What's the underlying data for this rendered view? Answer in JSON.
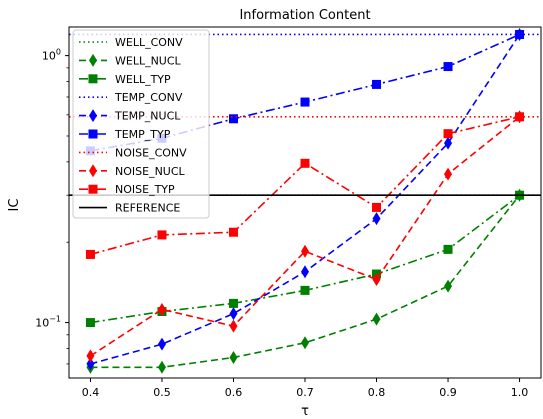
{
  "chart_data": {
    "type": "line",
    "title": "Information Content",
    "xlabel": "τ",
    "ylabel": "IC",
    "xlim": [
      0.37,
      1.03
    ],
    "ylim": [
      0.062,
      1.28
    ],
    "yscale": "log",
    "grid": false,
    "legend_position": "upper-left",
    "x_ticks": [
      "0.4",
      "0.5",
      "0.6",
      "0.7",
      "0.8",
      "0.9",
      "1.0"
    ],
    "y_ticks": [
      {
        "value": 0.1,
        "base": "10",
        "exp": "−1"
      },
      {
        "value": 1.0,
        "base": "10",
        "exp": "0"
      }
    ],
    "x": [
      0.4,
      0.5,
      0.6,
      0.7,
      0.8,
      0.9,
      1.0
    ],
    "series": [
      {
        "name": "WELL_CONV",
        "color": "#008000",
        "linestyle": "dotted",
        "marker": "none",
        "constant": 0.3
      },
      {
        "name": "WELL_NUCL",
        "color": "#008000",
        "linestyle": "dashed",
        "marker": "diamond",
        "values": [
          0.068,
          0.068,
          0.074,
          0.084,
          0.103,
          0.137,
          0.3
        ]
      },
      {
        "name": "WELL_TYP",
        "color": "#008000",
        "linestyle": "dashdot",
        "marker": "square",
        "values": [
          0.1,
          0.11,
          0.118,
          0.132,
          0.152,
          0.188,
          0.3
        ]
      },
      {
        "name": "TEMP_CONV",
        "color": "#0000ff",
        "linestyle": "dotted",
        "marker": "none",
        "constant": 1.2
      },
      {
        "name": "TEMP_NUCL",
        "color": "#0000ff",
        "linestyle": "dashed",
        "marker": "diamond",
        "values": [
          0.07,
          0.083,
          0.108,
          0.155,
          0.245,
          0.47,
          1.2
        ]
      },
      {
        "name": "TEMP_TYP",
        "color": "#0000ff",
        "linestyle": "dashdot",
        "marker": "square",
        "values": [
          0.44,
          0.49,
          0.58,
          0.67,
          0.78,
          0.91,
          1.2
        ]
      },
      {
        "name": "NOISE_CONV",
        "color": "#ff0000",
        "linestyle": "dotted",
        "marker": "none",
        "constant": 0.59
      },
      {
        "name": "NOISE_NUCL",
        "color": "#ff0000",
        "linestyle": "dashed",
        "marker": "diamond",
        "values": [
          0.075,
          0.112,
          0.097,
          0.185,
          0.145,
          0.36,
          0.59
        ]
      },
      {
        "name": "NOISE_TYP",
        "color": "#ff0000",
        "linestyle": "dashdot",
        "marker": "square",
        "values": [
          0.18,
          0.213,
          0.218,
          0.395,
          0.27,
          0.51,
          0.59
        ]
      },
      {
        "name": "REFERENCE",
        "color": "#000000",
        "linestyle": "solid",
        "marker": "none",
        "constant": 0.3
      }
    ]
  }
}
